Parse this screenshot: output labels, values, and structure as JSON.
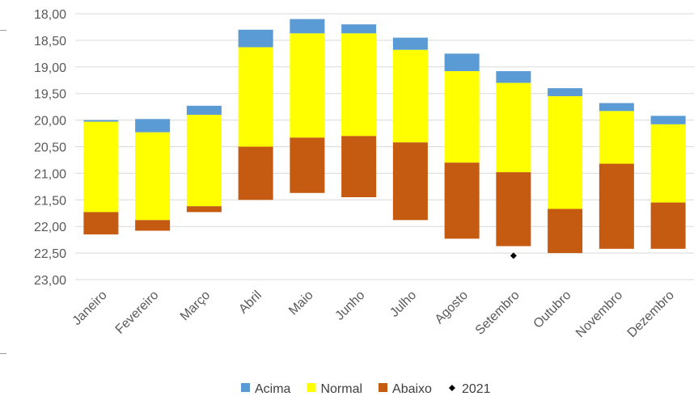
{
  "chart_data": {
    "type": "bar",
    "subtype": "floating-stacked",
    "y_axis_reversed": true,
    "ylim": [
      18.0,
      23.0
    ],
    "yticks": [
      "18,00",
      "18,50",
      "19,00",
      "19,50",
      "20,00",
      "20,50",
      "21,00",
      "21,50",
      "22,00",
      "22,50",
      "23,00"
    ],
    "grid": true,
    "legend_position": "bottom",
    "categories": [
      "Janeiro",
      "Fevereiro",
      "Março",
      "Abril",
      "Maio",
      "Junho",
      "Julho",
      "Agosto",
      "Setembro",
      "Outubro",
      "Novembro",
      "Dezembro"
    ],
    "series": [
      {
        "name": "Acima",
        "color": "#5b9bd5",
        "ranges": [
          [
            20.0,
            20.03
          ],
          [
            19.98,
            20.23
          ],
          [
            19.73,
            19.9
          ],
          [
            18.3,
            18.63
          ],
          [
            18.1,
            18.37
          ],
          [
            18.2,
            18.37
          ],
          [
            18.45,
            18.68
          ],
          [
            18.75,
            19.08
          ],
          [
            19.08,
            19.3
          ],
          [
            19.4,
            19.55
          ],
          [
            19.68,
            19.83
          ],
          [
            19.92,
            20.08
          ]
        ]
      },
      {
        "name": "Normal",
        "color": "#ffff00",
        "ranges": [
          [
            20.03,
            21.73
          ],
          [
            20.23,
            21.88
          ],
          [
            19.9,
            21.62
          ],
          [
            18.63,
            20.5
          ],
          [
            18.37,
            20.33
          ],
          [
            18.37,
            20.3
          ],
          [
            18.68,
            20.42
          ],
          [
            19.08,
            20.8
          ],
          [
            19.3,
            20.98
          ],
          [
            19.55,
            21.67
          ],
          [
            19.83,
            20.82
          ],
          [
            20.08,
            21.55
          ]
        ]
      },
      {
        "name": "Abaixo",
        "color": "#c55a11",
        "ranges": [
          [
            21.73,
            22.15
          ],
          [
            21.88,
            22.08
          ],
          [
            21.62,
            21.73
          ],
          [
            20.5,
            21.5
          ],
          [
            20.33,
            21.37
          ],
          [
            20.3,
            21.45
          ],
          [
            20.42,
            21.88
          ],
          [
            20.8,
            22.23
          ],
          [
            20.98,
            22.37
          ],
          [
            21.67,
            22.5
          ],
          [
            20.82,
            22.42
          ],
          [
            21.55,
            22.42
          ]
        ]
      }
    ],
    "markers": [
      {
        "name": "2021",
        "color": "#000000",
        "category": "Setembro",
        "y": 22.55
      }
    ]
  }
}
